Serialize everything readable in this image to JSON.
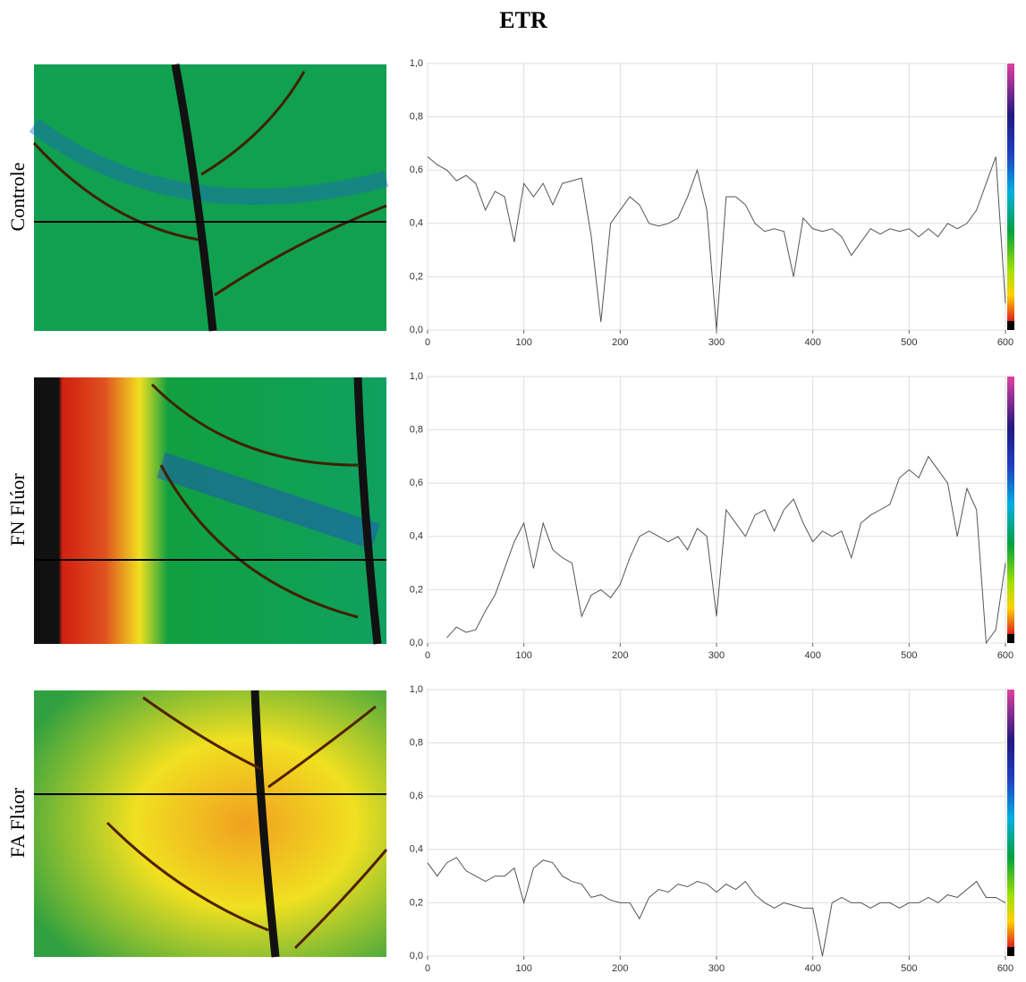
{
  "title": "ETR",
  "chart_data": [
    {
      "type": "line",
      "label": "Controle",
      "x": [
        0,
        10,
        20,
        30,
        40,
        50,
        60,
        70,
        80,
        90,
        100,
        110,
        120,
        130,
        140,
        150,
        160,
        170,
        180,
        190,
        200,
        210,
        220,
        230,
        240,
        250,
        260,
        270,
        280,
        290,
        300,
        310,
        320,
        330,
        340,
        350,
        360,
        370,
        380,
        390,
        400,
        410,
        420,
        430,
        440,
        450,
        460,
        470,
        480,
        490,
        500,
        510,
        520,
        530,
        540,
        550,
        560,
        570,
        580,
        590,
        600
      ],
      "values": [
        0.65,
        0.62,
        0.6,
        0.56,
        0.58,
        0.55,
        0.45,
        0.52,
        0.5,
        0.33,
        0.55,
        0.5,
        0.55,
        0.47,
        0.55,
        0.56,
        0.57,
        0.35,
        0.03,
        0.4,
        0.45,
        0.5,
        0.47,
        0.4,
        0.39,
        0.4,
        0.42,
        0.5,
        0.6,
        0.45,
        0,
        0.5,
        0.5,
        0.47,
        0.4,
        0.37,
        0.38,
        0.37,
        0.2,
        0.42,
        0.38,
        0.37,
        0.38,
        0.35,
        0.28,
        0.33,
        0.38,
        0.36,
        0.38,
        0.37,
        0.38,
        0.35,
        0.38,
        0.35,
        0.4,
        0.38,
        0.4,
        0.45,
        0.55,
        0.65,
        0.1
      ],
      "color": "#555555",
      "xlim": [
        0,
        600
      ],
      "ylim": [
        0,
        1
      ],
      "xticks": [
        0,
        100,
        200,
        300,
        400,
        500,
        600
      ],
      "yticks": [
        {
          "value": 0,
          "label": "0,0"
        },
        {
          "value": 0.2,
          "label": "0,2"
        },
        {
          "value": 0.4,
          "label": "0,4"
        },
        {
          "value": 0.6,
          "label": "0,6"
        },
        {
          "value": 0.8,
          "label": "0,8"
        },
        {
          "value": 1,
          "label": "1,0"
        }
      ],
      "grid": true
    },
    {
      "type": "line",
      "label": "FN Flúor",
      "x": [
        0,
        10,
        20,
        30,
        40,
        50,
        60,
        70,
        80,
        90,
        100,
        110,
        120,
        130,
        140,
        150,
        160,
        170,
        180,
        190,
        200,
        210,
        220,
        230,
        240,
        250,
        260,
        270,
        280,
        290,
        300,
        310,
        320,
        330,
        340,
        350,
        360,
        370,
        380,
        390,
        400,
        410,
        420,
        430,
        440,
        450,
        460,
        470,
        480,
        490,
        500,
        510,
        520,
        530,
        540,
        550,
        560,
        570,
        580,
        590,
        600
      ],
      "values": [
        null,
        null,
        0.02,
        0.06,
        0.04,
        0.05,
        0.12,
        0.18,
        0.28,
        0.38,
        0.45,
        0.28,
        0.45,
        0.35,
        0.32,
        0.3,
        0.1,
        0.18,
        0.2,
        0.17,
        0.22,
        0.32,
        0.4,
        0.42,
        0.4,
        0.38,
        0.4,
        0.35,
        0.43,
        0.4,
        0.1,
        0.5,
        0.45,
        0.4,
        0.48,
        0.5,
        0.42,
        0.5,
        0.54,
        0.45,
        0.38,
        0.42,
        0.4,
        0.42,
        0.32,
        0.45,
        0.48,
        0.5,
        0.52,
        0.62,
        0.65,
        0.62,
        0.7,
        0.65,
        0.6,
        0.4,
        0.58,
        0.5,
        0,
        0.05,
        0.3
      ],
      "color": "#555555",
      "xlim": [
        0,
        600
      ],
      "ylim": [
        0,
        1
      ],
      "xticks": [
        0,
        100,
        200,
        300,
        400,
        500,
        600
      ],
      "yticks": [
        {
          "value": 0,
          "label": "0,0"
        },
        {
          "value": 0.2,
          "label": "0,2"
        },
        {
          "value": 0.4,
          "label": "0,4"
        },
        {
          "value": 0.6,
          "label": "0,6"
        },
        {
          "value": 0.8,
          "label": "0,8"
        },
        {
          "value": 1,
          "label": "1,0"
        }
      ],
      "grid": true
    },
    {
      "type": "line",
      "label": "FA Flúor",
      "x": [
        0,
        10,
        20,
        30,
        40,
        50,
        60,
        70,
        80,
        90,
        100,
        110,
        120,
        130,
        140,
        150,
        160,
        170,
        180,
        190,
        200,
        210,
        220,
        230,
        240,
        250,
        260,
        270,
        280,
        290,
        300,
        310,
        320,
        330,
        340,
        350,
        360,
        370,
        380,
        390,
        400,
        410,
        420,
        430,
        440,
        450,
        460,
        470,
        480,
        490,
        500,
        510,
        520,
        530,
        540,
        550,
        560,
        570,
        580,
        590,
        600
      ],
      "values": [
        0.35,
        0.3,
        0.35,
        0.37,
        0.32,
        0.3,
        0.28,
        0.3,
        0.3,
        0.33,
        0.2,
        0.33,
        0.36,
        0.35,
        0.3,
        0.28,
        0.27,
        0.22,
        0.23,
        0.21,
        0.2,
        0.2,
        0.14,
        0.22,
        0.25,
        0.24,
        0.27,
        0.26,
        0.28,
        0.27,
        0.24,
        0.27,
        0.25,
        0.28,
        0.23,
        0.2,
        0.18,
        0.2,
        0.19,
        0.18,
        0.18,
        0,
        0.2,
        0.22,
        0.2,
        0.2,
        0.18,
        0.2,
        0.2,
        0.18,
        0.2,
        0.2,
        0.22,
        0.2,
        0.23,
        0.22,
        0.25,
        0.28,
        0.22,
        0.22,
        0.2
      ],
      "color": "#555555",
      "xlim": [
        0,
        600
      ],
      "ylim": [
        0,
        1
      ],
      "xticks": [
        0,
        100,
        200,
        300,
        400,
        500,
        600
      ],
      "yticks": [
        {
          "value": 0,
          "label": "0,0"
        },
        {
          "value": 0.2,
          "label": "0,2"
        },
        {
          "value": 0.4,
          "label": "0,4"
        },
        {
          "value": 0.6,
          "label": "0,6"
        },
        {
          "value": 0.8,
          "label": "0,8"
        },
        {
          "value": 1,
          "label": "1,0"
        }
      ],
      "grid": true
    }
  ]
}
